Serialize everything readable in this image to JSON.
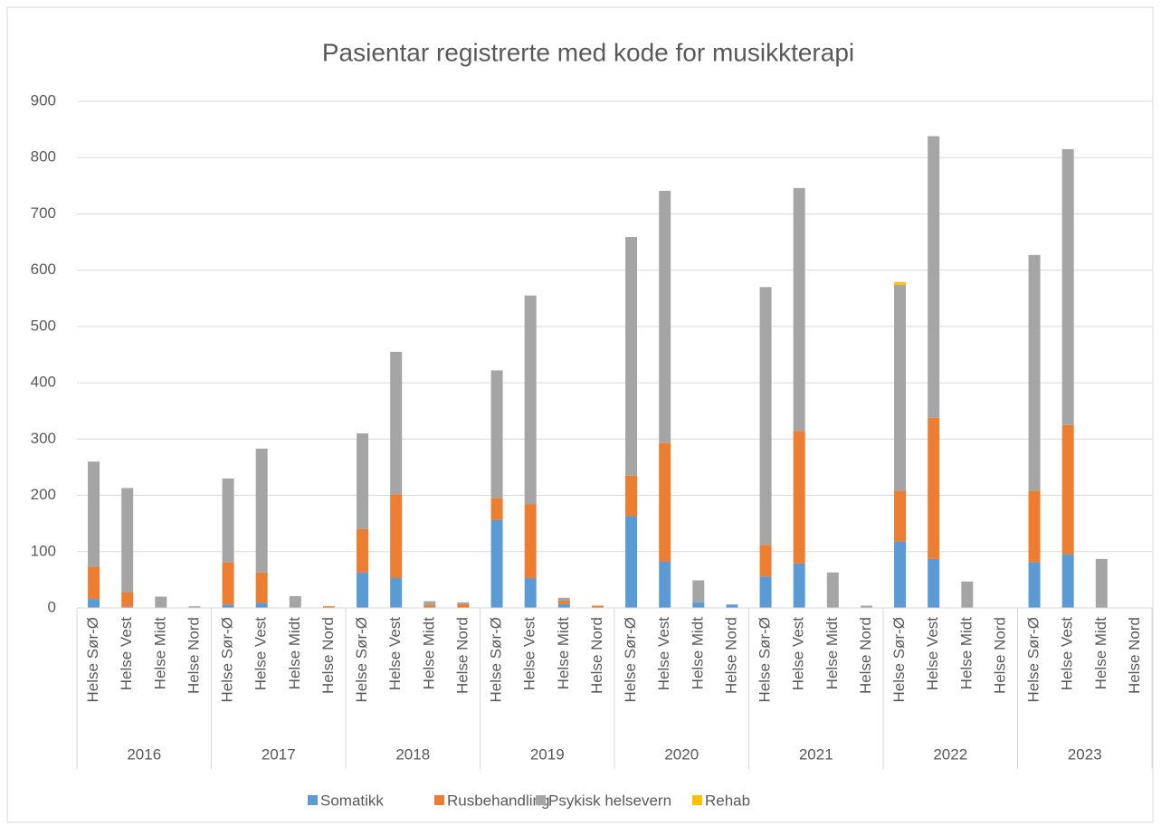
{
  "chart_data": {
    "type": "stacked_bar",
    "title": "Pasientar registrerte med kode for musikkterapi",
    "categories": [
      "Helse Sør-Ø",
      "Helse Vest",
      "Helse Midt",
      "Helse Nord",
      "Helse Sør-Ø",
      "Helse Vest",
      "Helse Midt",
      "Helse Nord",
      "Helse Sør-Ø",
      "Helse Vest",
      "Helse Midt",
      "Helse Nord",
      "Helse Sør-Ø",
      "Helse Vest",
      "Helse Midt",
      "Helse Nord",
      "Helse Sør-Ø",
      "Helse Vest",
      "Helse Midt",
      "Helse Nord",
      "Helse Sør-Ø",
      "Helse Vest",
      "Helse Midt",
      "Helse Nord",
      "Helse Sør-Ø",
      "Helse Vest",
      "Helse Midt",
      "Helse Nord",
      "Helse Sør-Ø",
      "Helse Vest",
      "Helse Midt",
      "Helse Nord"
    ],
    "groups": [
      "2016",
      "2017",
      "2018",
      "2019",
      "2020",
      "2021",
      "2022",
      "2023"
    ],
    "series": [
      {
        "name": "Somatikk",
        "color": "#5b9bd5",
        "values": [
          16,
          2,
          0,
          0,
          6,
          9,
          0,
          0,
          63,
          53,
          0,
          0,
          156,
          53,
          7,
          0,
          163,
          82,
          10,
          6,
          56,
          79,
          0,
          0,
          118,
          87,
          0,
          0,
          81,
          95,
          0,
          0
        ]
      },
      {
        "name": "Rusbehandling",
        "color": "#ed7d31",
        "values": [
          57,
          26,
          0,
          0,
          75,
          54,
          0,
          3,
          77,
          149,
          5,
          7,
          39,
          131,
          6,
          4,
          72,
          211,
          0,
          0,
          56,
          235,
          0,
          0,
          90,
          251,
          0,
          0,
          127,
          230,
          0,
          0
        ]
      },
      {
        "name": "Psykisk helsevern",
        "color": "#a5a5a5",
        "values": [
          187,
          185,
          20,
          3,
          149,
          220,
          21,
          0,
          170,
          253,
          7,
          3,
          227,
          371,
          5,
          0,
          424,
          448,
          39,
          0,
          458,
          432,
          63,
          4,
          366,
          500,
          47,
          0,
          419,
          490,
          87,
          0
        ]
      },
      {
        "name": "Rehab",
        "color": "#ffc000",
        "values": [
          0,
          0,
          0,
          0,
          0,
          0,
          0,
          0,
          0,
          0,
          0,
          0,
          0,
          0,
          0,
          0,
          0,
          0,
          0,
          0,
          0,
          0,
          0,
          0,
          5,
          0,
          0,
          0,
          0,
          0,
          0,
          0
        ]
      }
    ],
    "ylim": [
      0,
      900
    ],
    "yticks": [
      0,
      100,
      200,
      300,
      400,
      500,
      600,
      700,
      800,
      900
    ],
    "grid": true,
    "legend": "bottom"
  }
}
